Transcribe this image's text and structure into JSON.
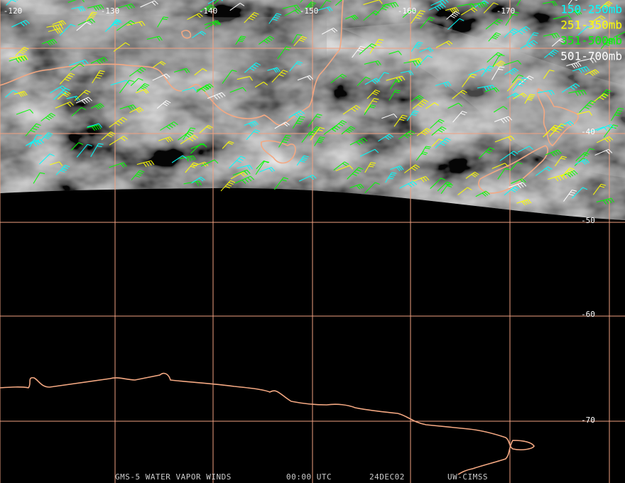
{
  "map": {
    "longitude_labels": [
      "-120",
      "-130",
      "-140",
      "-150",
      "-160",
      "-170"
    ],
    "latitude_labels": [
      "-40",
      "-50",
      "-60",
      "-70"
    ],
    "legend": [
      {
        "label": "150-250mb",
        "color": "#00ffff"
      },
      {
        "label": "251-350mb",
        "color": "#ffff00"
      },
      {
        "label": "351-500mb",
        "color": "#00ff00"
      },
      {
        "label": "501-700mb",
        "color": "#ffffff"
      }
    ],
    "footer": [
      "GMS-5 WATER VAPOR WINDS",
      "00:00 UTC",
      "24DEC02",
      "UW-CIMSS"
    ]
  }
}
